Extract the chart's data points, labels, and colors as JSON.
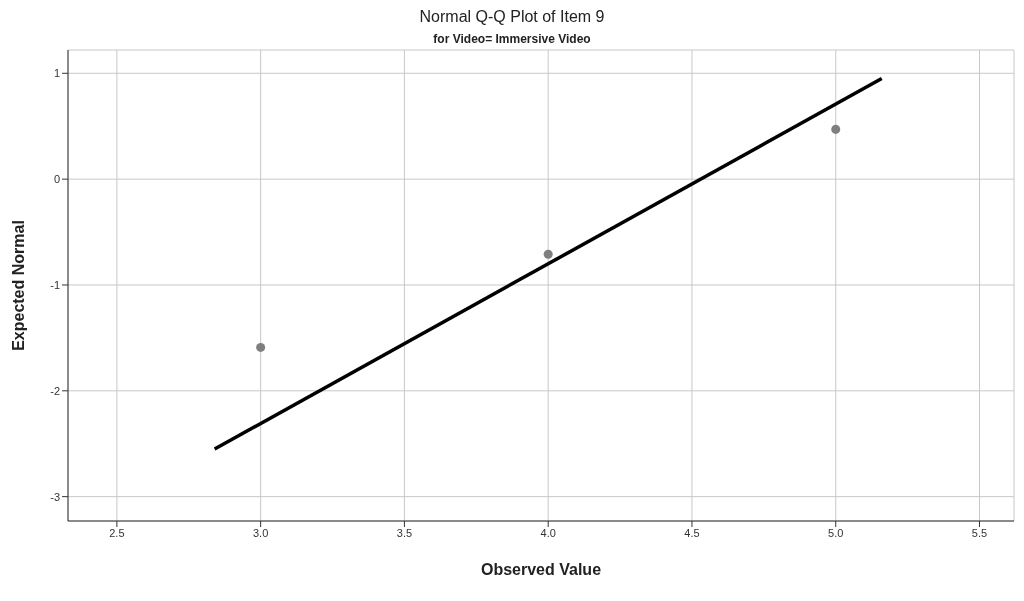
{
  "chart_data": {
    "type": "scatter",
    "title": "Normal Q-Q Plot of Item 9",
    "subtitle": "for Video= Immersive Video",
    "xlabel": "Observed Value",
    "ylabel": "Expected Normal",
    "xlim": [
      2.33,
      5.62
    ],
    "xticks": [
      {
        "value": 2.5,
        "label": "2.5"
      },
      {
        "value": 3,
        "label": "3.0"
      },
      {
        "value": 3.5,
        "label": "3.5"
      },
      {
        "value": 4,
        "label": "4.0"
      },
      {
        "value": 4.5,
        "label": "4.5"
      },
      {
        "value": 5,
        "label": "5.0"
      },
      {
        "value": 5.5,
        "label": "5.5"
      }
    ],
    "ylim": [
      -3.23,
      1.22
    ],
    "yticks": [
      -3,
      -2,
      -1,
      0,
      1
    ],
    "grid": true,
    "legend": false,
    "series": [
      {
        "color": "#7f7f7f",
        "marker": "circle",
        "x": [
          3,
          4,
          5
        ],
        "values": [
          -1.59,
          -0.71,
          0.47
        ]
      },
      {
        "type": "line",
        "color": "#000000",
        "marker": "none",
        "line_style": "solid",
        "x": [
          2.84,
          5.16
        ],
        "values": [
          -2.55,
          0.95
        ]
      }
    ]
  }
}
